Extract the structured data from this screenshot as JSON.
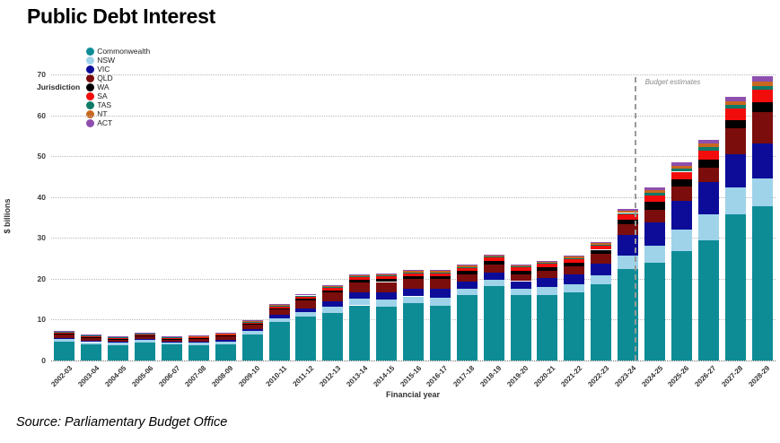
{
  "header": {
    "title": "Public Debt Interest"
  },
  "legend": {
    "title": "Jurisdiction"
  },
  "annotation": {
    "label": "Budget estimates",
    "at_year": "2024-25"
  },
  "source": {
    "text": "Source: Parliamentary Budget Office"
  },
  "chart_data": {
    "type": "stacked-bar",
    "title": "Public Debt Interest",
    "xlabel": "Financial year",
    "ylabel": "$ billions",
    "ylim": [
      0,
      70
    ],
    "ytick_step": 10,
    "grid": "dotted-horizontal",
    "legend_position": "top-left",
    "categories": [
      "2002-03",
      "2003-04",
      "2004-05",
      "2005-06",
      "2006-07",
      "2007-08",
      "2008-09",
      "2009-10",
      "2010-11",
      "2011-12",
      "2012-13",
      "2013-14",
      "2014-15",
      "2015-16",
      "2016-17",
      "2017-18",
      "2018-19",
      "2019-20",
      "2020-21",
      "2021-22",
      "2022-23",
      "2023-24",
      "2024-25",
      "2025-26",
      "2026-27",
      "2027-28",
      "2028-29"
    ],
    "series": [
      {
        "name": "Commonwealth",
        "color": "#0E8C96",
        "values": [
          4.7,
          4.0,
          3.8,
          4.5,
          3.9,
          3.8,
          4.0,
          6.4,
          9.4,
          10.7,
          11.6,
          13.5,
          13.2,
          14.0,
          13.4,
          16.0,
          18.2,
          16.0,
          16.0,
          16.6,
          18.6,
          22.3,
          23.9,
          26.8,
          29.5,
          35.8,
          37.8
        ]
      },
      {
        "name": "NSW",
        "color": "#9FD3EA",
        "values": [
          0.5,
          0.5,
          0.5,
          0.55,
          0.5,
          0.55,
          0.65,
          0.8,
          1.0,
          1.1,
          1.5,
          1.7,
          1.8,
          1.7,
          2.0,
          1.6,
          1.6,
          1.6,
          1.9,
          2.0,
          2.2,
          3.4,
          4.3,
          5.2,
          6.2,
          6.6,
          6.8
        ]
      },
      {
        "name": "VIC",
        "color": "#0C0C99",
        "values": [
          0.3,
          0.3,
          0.25,
          0.3,
          0.3,
          0.3,
          0.35,
          0.55,
          0.8,
          1.0,
          1.3,
          1.5,
          1.7,
          1.8,
          2.2,
          1.7,
          1.7,
          1.8,
          2.3,
          2.5,
          3.0,
          5.0,
          5.6,
          7.0,
          7.9,
          8.0,
          8.5
        ]
      },
      {
        "name": "QLD",
        "color": "#7B0D0D",
        "values": [
          0.8,
          0.7,
          0.55,
          0.65,
          0.5,
          0.65,
          0.85,
          1.0,
          1.3,
          1.9,
          2.2,
          2.4,
          2.5,
          2.4,
          2.3,
          1.8,
          1.9,
          1.7,
          1.8,
          1.9,
          2.3,
          2.6,
          3.0,
          3.5,
          3.6,
          6.5,
          7.8
        ]
      },
      {
        "name": "WA",
        "color": "#000000",
        "values": [
          0.2,
          0.15,
          0.15,
          0.15,
          0.15,
          0.15,
          0.2,
          0.25,
          0.3,
          0.4,
          0.5,
          0.6,
          0.7,
          0.8,
          0.8,
          0.9,
          1.0,
          0.9,
          0.9,
          0.9,
          1.0,
          1.2,
          2.0,
          1.8,
          1.9,
          2.0,
          2.3
        ]
      },
      {
        "name": "SA",
        "color": "#F20D0D",
        "values": [
          0.4,
          0.4,
          0.35,
          0.35,
          0.3,
          0.3,
          0.4,
          0.45,
          0.5,
          0.6,
          0.7,
          0.7,
          0.7,
          0.7,
          0.7,
          0.7,
          0.8,
          0.8,
          0.8,
          0.9,
          1.0,
          1.2,
          1.6,
          1.9,
          2.2,
          2.7,
          3.0
        ]
      },
      {
        "name": "TAS",
        "color": "#0E7B68",
        "values": [
          0.1,
          0.1,
          0.1,
          0.1,
          0.1,
          0.1,
          0.1,
          0.1,
          0.15,
          0.2,
          0.2,
          0.2,
          0.2,
          0.2,
          0.2,
          0.2,
          0.2,
          0.2,
          0.25,
          0.3,
          0.3,
          0.4,
          0.6,
          0.7,
          0.9,
          0.9,
          1.0
        ]
      },
      {
        "name": "NT",
        "color": "#C8671F",
        "values": [
          0.15,
          0.15,
          0.15,
          0.15,
          0.15,
          0.15,
          0.15,
          0.2,
          0.25,
          0.25,
          0.25,
          0.3,
          0.3,
          0.3,
          0.3,
          0.3,
          0.3,
          0.3,
          0.3,
          0.3,
          0.35,
          0.5,
          0.7,
          0.8,
          0.9,
          1.0,
          1.1
        ]
      },
      {
        "name": "ACT",
        "color": "#8E4FAE",
        "values": [
          0.05,
          0.05,
          0.05,
          0.05,
          0.05,
          0.05,
          0.05,
          0.1,
          0.15,
          0.15,
          0.2,
          0.2,
          0.2,
          0.2,
          0.2,
          0.2,
          0.2,
          0.2,
          0.2,
          0.25,
          0.3,
          0.5,
          0.7,
          0.8,
          1.0,
          1.1,
          1.2
        ]
      }
    ]
  }
}
